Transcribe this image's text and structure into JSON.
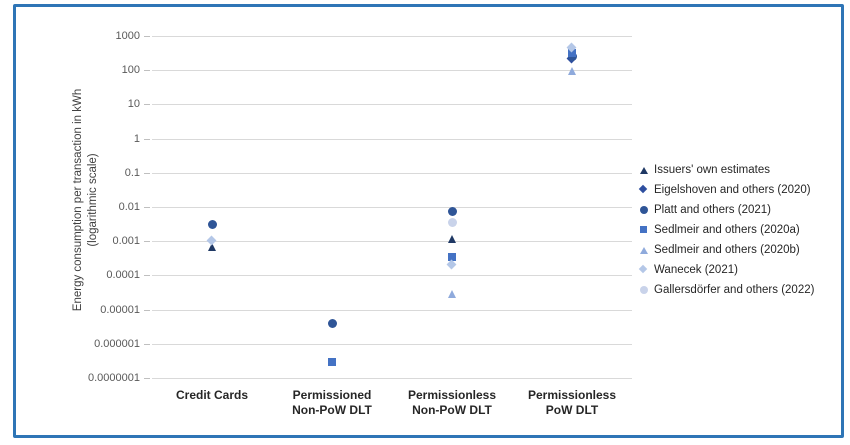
{
  "frame": {
    "border_color": "#2E75B6",
    "background": "#FFFFFF"
  },
  "chart_data": {
    "type": "scatter",
    "title": "",
    "ylabel_line1": "Energy consumption per transaction in kWh",
    "ylabel_line2": "(logarithmic scale)",
    "yscale": "log",
    "ylim": [
      1e-07,
      1000
    ],
    "grid": true,
    "legend_position": "right",
    "ytick_labels": [
      "1000",
      "100",
      "10",
      "1",
      "0.1",
      "0.01",
      "0.001",
      "0.0001",
      "0.00001",
      "0.000001",
      "0.0000001"
    ],
    "categories": [
      [
        "Credit Cards"
      ],
      [
        "Permissioned",
        "Non-PoW DLT"
      ],
      [
        "Permissionless",
        "Non-PoW DLT"
      ],
      [
        "Permissionless",
        "PoW DLT"
      ]
    ],
    "series": [
      {
        "name": "Issuers' own estimates",
        "marker": "triangle",
        "color": "#1F3864",
        "points": [
          {
            "category": 0,
            "value": 0.0007
          },
          {
            "category": 2,
            "value": 0.0012
          }
        ]
      },
      {
        "name": "Eigelshoven and others (2020)",
        "marker": "diamond",
        "color": "#2E4E9F",
        "points": [
          {
            "category": 3,
            "value": 210
          }
        ]
      },
      {
        "name": "Platt and others (2021)",
        "marker": "circle",
        "color": "#2F5597",
        "points": [
          {
            "category": 0,
            "value": 0.003
          },
          {
            "category": 1,
            "value": 4e-06
          },
          {
            "category": 2,
            "value": 0.0075
          },
          {
            "category": 3,
            "value": 260
          }
        ]
      },
      {
        "name": "Sedlmeir and others (2020a)",
        "marker": "square",
        "color": "#4472C4",
        "points": [
          {
            "category": 1,
            "value": 3e-07
          },
          {
            "category": 2,
            "value": 0.00035
          },
          {
            "category": 3,
            "value": 320
          }
        ]
      },
      {
        "name": "Sedlmeir and others (2020b)",
        "marker": "triangle",
        "color": "#8FAADC",
        "points": [
          {
            "category": 2,
            "value": 3e-05
          },
          {
            "category": 3,
            "value": 100
          }
        ]
      },
      {
        "name": "Wanecek (2021)",
        "marker": "diamond",
        "color": "#B4C7E7",
        "points": [
          {
            "category": 0,
            "value": 0.001
          },
          {
            "category": 2,
            "value": 0.0002
          },
          {
            "category": 3,
            "value": 450
          }
        ]
      },
      {
        "name": "Gallersdörfer and others (2022)",
        "marker": "circle",
        "color": "#C9D3EA",
        "points": [
          {
            "category": 2,
            "value": 0.0035
          }
        ]
      }
    ]
  }
}
